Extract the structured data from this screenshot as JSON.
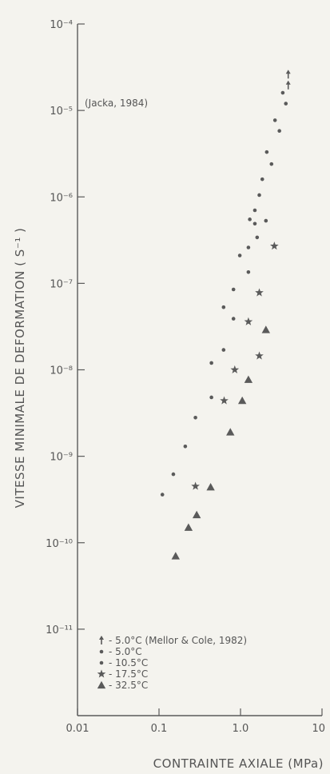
{
  "chart_data": {
    "type": "scatter",
    "title": "",
    "xlabel": "CONTRAINTE AXIALE (MPa)",
    "ylabel": "VITESSE MINIMALE DE DEFORMATION ( S⁻¹ )",
    "xscale": "log",
    "yscale": "log",
    "xlim": [
      0.01,
      10
    ],
    "ylim": [
      1e-12,
      0.0001
    ],
    "x_tick_labels": [
      "0.01",
      "0.1",
      "1.0",
      "10"
    ],
    "y_tick_labels": [
      "10⁻⁴",
      "10⁻⁵",
      "10⁻⁶",
      "10⁻⁷",
      "10⁻⁸",
      "10⁻⁹",
      "10⁻¹⁰",
      "10⁻¹¹"
    ],
    "annotation": "(Jacka, 1984)",
    "grid": false,
    "legend_position": "bottom-left",
    "series": [
      {
        "name": "- 5.0°C  (Mellor & Cole, 1982)",
        "marker": "dagger",
        "points": [
          [
            3.85,
            2.6e-05
          ],
          [
            3.85,
            1.95e-05
          ]
        ]
      },
      {
        "name": "- 5.0°C",
        "marker": "dot",
        "points": [
          [
            3.6,
            1.2e-05
          ],
          [
            3.3,
            1.6e-05
          ]
        ]
      },
      {
        "name": "- 10.5°C",
        "marker": "dot",
        "points": [
          [
            0.11,
            3.6e-10
          ],
          [
            0.15,
            6.2e-10
          ],
          [
            0.21,
            1.3e-09
          ],
          [
            0.28,
            2.8e-09
          ],
          [
            0.44,
            4.8e-09
          ],
          [
            0.44,
            1.2e-08
          ],
          [
            0.62,
            1.7e-08
          ],
          [
            0.62,
            5.3e-08
          ],
          [
            0.82,
            3.9e-08
          ],
          [
            0.82,
            8.5e-08
          ],
          [
            0.98,
            2.1e-07
          ],
          [
            1.25,
            2.6e-07
          ],
          [
            1.25,
            1.35e-07
          ],
          [
            1.6,
            3.4e-07
          ],
          [
            1.3,
            5.5e-07
          ],
          [
            1.5,
            4.9e-07
          ],
          [
            1.5,
            7e-07
          ],
          [
            1.7,
            1.05e-06
          ],
          [
            1.85,
            1.6e-06
          ],
          [
            2.05,
            5.3e-07
          ],
          [
            2.1,
            3.3e-06
          ],
          [
            2.4,
            2.4e-06
          ],
          [
            2.65,
            7.7e-06
          ],
          [
            3.0,
            5.8e-06
          ]
        ]
      },
      {
        "name": "- 17.5°C",
        "marker": "star",
        "points": [
          [
            0.28,
            4.5e-10
          ],
          [
            0.63,
            4.4e-09
          ],
          [
            0.85,
            1e-08
          ],
          [
            1.25,
            3.6e-08
          ],
          [
            1.7,
            7.8e-08
          ],
          [
            1.7,
            1.45e-08
          ],
          [
            2.6,
            2.7e-07
          ]
        ]
      },
      {
        "name": "- 32.5°C",
        "marker": "triangle",
        "points": [
          [
            0.16,
            7e-11
          ],
          [
            0.23,
            1.5e-10
          ],
          [
            0.29,
            2.1e-10
          ],
          [
            0.43,
            4.4e-10
          ],
          [
            0.75,
            1.9e-09
          ],
          [
            1.05,
            4.4e-09
          ],
          [
            1.25,
            7.7e-09
          ],
          [
            2.05,
            2.9e-08
          ]
        ]
      }
    ]
  }
}
